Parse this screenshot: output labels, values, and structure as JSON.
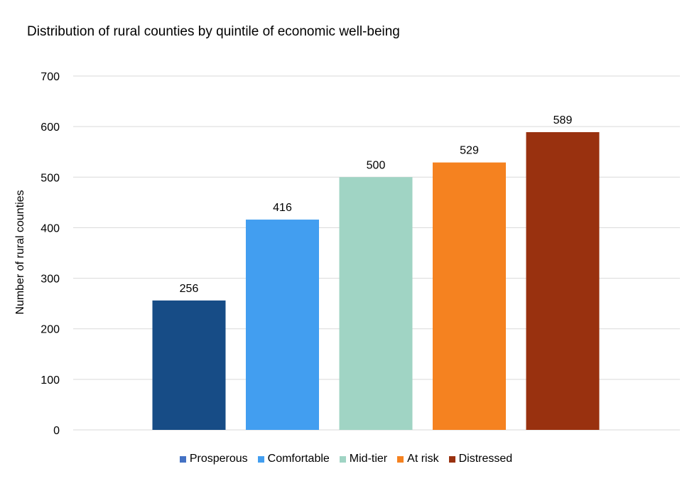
{
  "chart_data": {
    "type": "bar",
    "title": "Distribution of rural counties by quintile of economic well-being",
    "ylabel": "Number of rural counties",
    "xlabel": "",
    "ylim": [
      0,
      700
    ],
    "yticks": [
      0,
      100,
      200,
      300,
      400,
      500,
      600,
      700
    ],
    "grid": true,
    "legend_position": "bottom",
    "series": [
      {
        "name": "Prosperous",
        "value": 256,
        "color": "#174c86"
      },
      {
        "name": "Comfortable",
        "value": 416,
        "color": "#429ef0"
      },
      {
        "name": "Mid-tier",
        "value": 500,
        "color": "#a0d4c4"
      },
      {
        "name": "At risk",
        "value": 529,
        "color": "#f58220"
      },
      {
        "name": "Distressed",
        "value": 589,
        "color": "#99310f"
      }
    ]
  }
}
